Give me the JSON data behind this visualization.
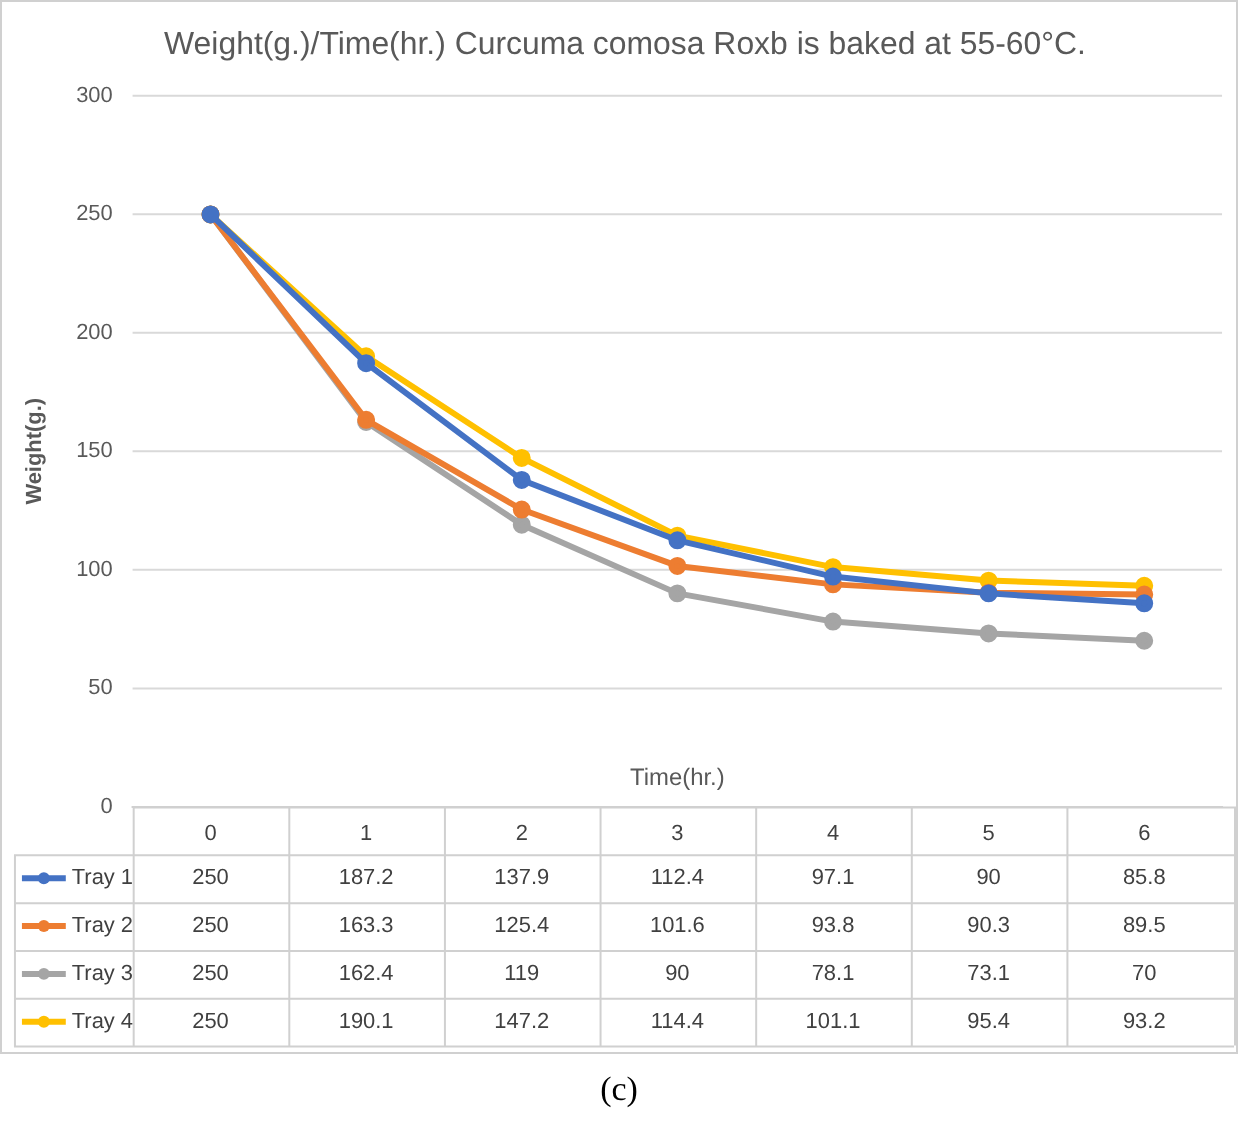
{
  "chart_data": {
    "type": "line",
    "title": "Weight(g.)/Time(hr.) Curcuma comosa Roxb is baked at 55-60°C.",
    "xlabel": "Time(hr.)",
    "ylabel": "Weight(g.)",
    "categories": [
      "0",
      "1",
      "2",
      "3",
      "4",
      "5",
      "6"
    ],
    "series": [
      {
        "name": "Tray 1",
        "color": "#4472c4",
        "values": [
          250,
          187.2,
          137.9,
          112.4,
          97.1,
          90,
          85.8
        ]
      },
      {
        "name": "Tray 2",
        "color": "#ed7d31",
        "values": [
          250,
          163.3,
          125.4,
          101.6,
          93.8,
          90.3,
          89.5
        ]
      },
      {
        "name": "Tray 3",
        "color": "#a5a5a5",
        "values": [
          250,
          162.4,
          119,
          90,
          78.1,
          73.1,
          70
        ]
      },
      {
        "name": "Tray 4",
        "color": "#ffc000",
        "values": [
          250,
          190.1,
          147.2,
          114.4,
          101.1,
          95.4,
          93.2
        ]
      }
    ],
    "ylim": [
      0,
      300
    ],
    "yticks": [
      0,
      50,
      100,
      150,
      200,
      250,
      300
    ],
    "grid": "y",
    "legend": "bottom",
    "marker": "circle",
    "line_style": "solid",
    "data_labels": true,
    "annotations": [
      "(c)"
    ]
  }
}
